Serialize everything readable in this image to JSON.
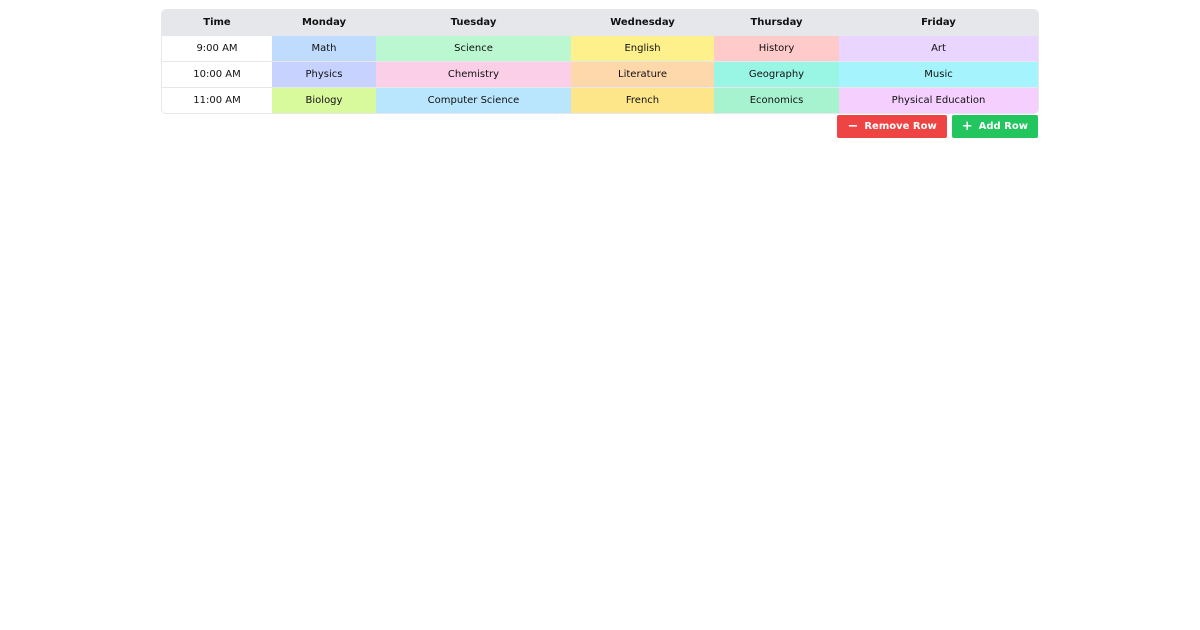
{
  "headers": [
    "Time",
    "Monday",
    "Tuesday",
    "Wednesday",
    "Thursday",
    "Friday"
  ],
  "rows": [
    {
      "time": "9:00 AM",
      "cells": [
        {
          "text": "Math",
          "color": "#bfdbfe"
        },
        {
          "text": "Science",
          "color": "#bbf7d0"
        },
        {
          "text": "English",
          "color": "#fef08a"
        },
        {
          "text": "History",
          "color": "#fecaca"
        },
        {
          "text": "Art",
          "color": "#e9d5ff"
        }
      ]
    },
    {
      "time": "10:00 AM",
      "cells": [
        {
          "text": "Physics",
          "color": "#c7d2fe"
        },
        {
          "text": "Chemistry",
          "color": "#fbcfe8"
        },
        {
          "text": "Literature",
          "color": "#fed7aa"
        },
        {
          "text": "Geography",
          "color": "#99f6e4"
        },
        {
          "text": "Music",
          "color": "#a5f3fc"
        }
      ]
    },
    {
      "time": "11:00 AM",
      "cells": [
        {
          "text": "Biology",
          "color": "#d9f99d"
        },
        {
          "text": "Computer Science",
          "color": "#bae6fd"
        },
        {
          "text": "French",
          "color": "#fde68a"
        },
        {
          "text": "Economics",
          "color": "#a7f3d0"
        },
        {
          "text": "Physical Education",
          "color": "#f5d0fe"
        }
      ]
    }
  ],
  "buttons": {
    "remove_label": "Remove Row",
    "remove_icon": "minus-icon",
    "remove_color": "#ef4444",
    "add_label": "Add Row",
    "add_icon": "plus-icon",
    "add_color": "#22c55e"
  }
}
